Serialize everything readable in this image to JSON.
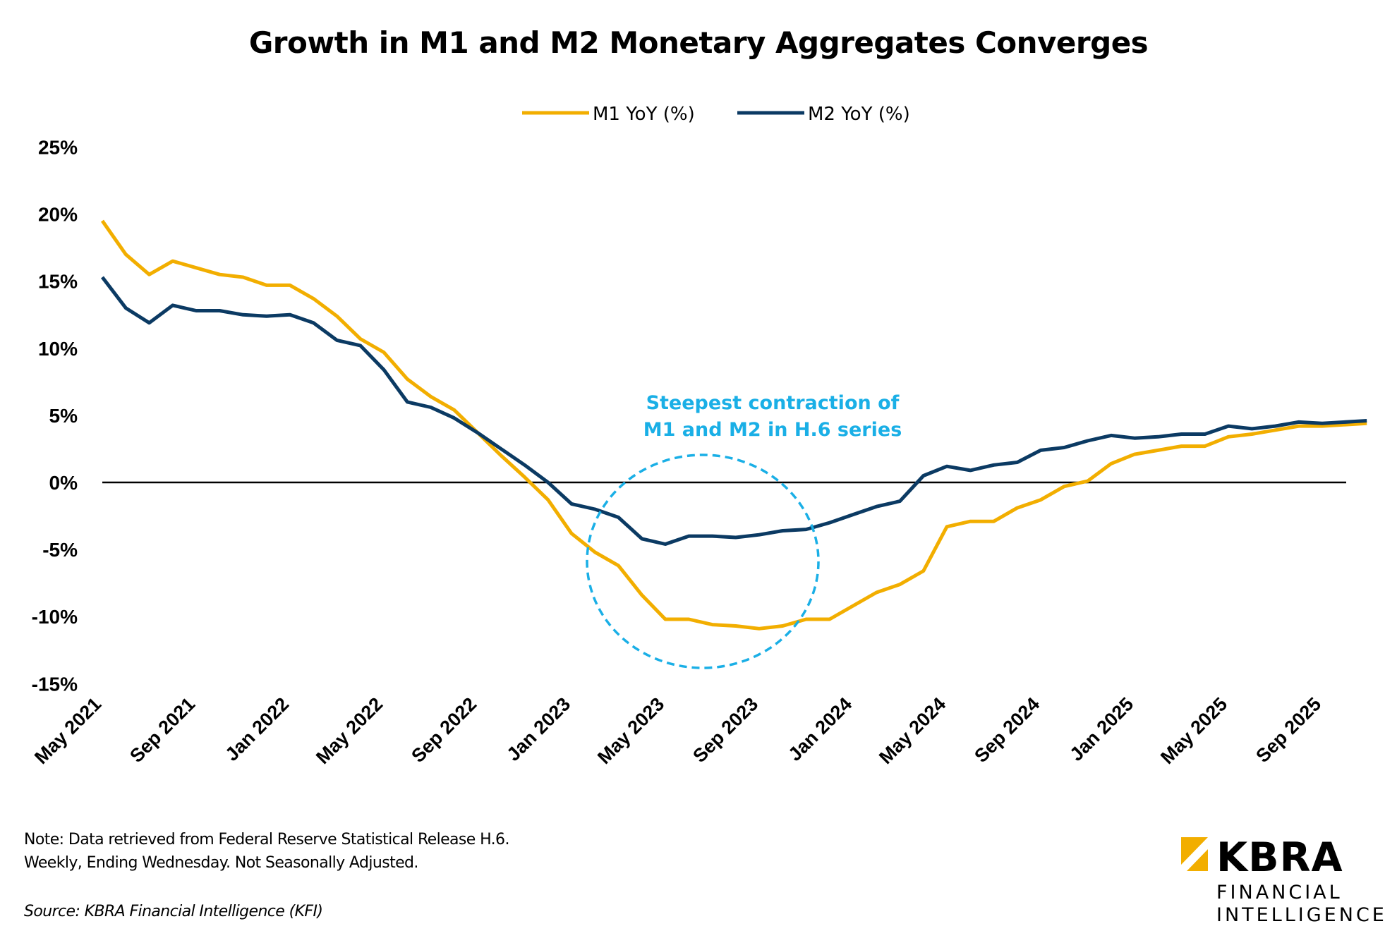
{
  "chart_data": {
    "type": "line",
    "title": "Growth in M1 and M2 Monetary Aggregates Converges",
    "legend_placement": "top",
    "y_ticks": [
      "25%",
      "20%",
      "15%",
      "10%",
      "5%",
      "0%",
      "-5%",
      "-10%",
      "-15%"
    ],
    "ylim": [
      -15,
      25
    ],
    "x_ticks": [
      "May 2021",
      "Sep 2021",
      "Jan 2022",
      "May 2022",
      "Sep 2022",
      "Jan 2023",
      "May 2023",
      "Sep 2023",
      "Jan 2024",
      "May 2024",
      "Sep 2024",
      "Jan 2025",
      "May 2025",
      "Sep 2025"
    ],
    "x": [
      "2021-05",
      "2021-06",
      "2021-07",
      "2021-08",
      "2021-09",
      "2021-10",
      "2021-11",
      "2021-12",
      "2022-01",
      "2022-02",
      "2022-03",
      "2022-04",
      "2022-05",
      "2022-06",
      "2022-07",
      "2022-08",
      "2022-09",
      "2022-10",
      "2022-11",
      "2022-12",
      "2023-01",
      "2023-02",
      "2023-03",
      "2023-04",
      "2023-05",
      "2023-06",
      "2023-07",
      "2023-08",
      "2023-09",
      "2023-10",
      "2023-11",
      "2023-12",
      "2024-01",
      "2024-02",
      "2024-03",
      "2024-04",
      "2024-05",
      "2024-06",
      "2024-07",
      "2024-08",
      "2024-09",
      "2024-10",
      "2024-11",
      "2024-12",
      "2025-01",
      "2025-02",
      "2025-03",
      "2025-04",
      "2025-05",
      "2025-06",
      "2025-07",
      "2025-08",
      "2025-09",
      "2025-10"
    ],
    "series": [
      {
        "name": "M1 YoY (%)",
        "color": "#F2AE00",
        "values": [
          19.5,
          17.0,
          15.5,
          16.5,
          16.0,
          15.5,
          15.3,
          14.7,
          14.7,
          13.7,
          12.4,
          10.7,
          9.7,
          7.7,
          6.4,
          5.4,
          3.7,
          2.0,
          0.4,
          -1.3,
          -3.8,
          -5.2,
          -6.2,
          -8.4,
          -10.2,
          -10.2,
          -10.6,
          -10.7,
          -10.9,
          -10.7,
          -10.2,
          -10.2,
          -9.2,
          -8.2,
          -7.6,
          -6.6,
          -3.3,
          -2.9,
          -2.9,
          -1.9,
          -1.3,
          -0.3,
          0.1,
          1.4,
          2.1,
          2.4,
          2.7,
          2.7,
          3.4,
          3.6,
          3.9,
          4.2,
          4.2,
          4.4
        ]
      },
      {
        "name": "M2 YoY (%)",
        "color": "#0B3A63",
        "values": [
          15.3,
          13.0,
          11.9,
          13.2,
          12.8,
          12.8,
          12.5,
          12.4,
          12.5,
          11.9,
          10.6,
          10.2,
          8.4,
          6.0,
          5.6,
          4.8,
          3.7,
          2.5,
          1.3,
          0.0,
          -1.6,
          -2.0,
          -2.6,
          -4.2,
          -4.6,
          -4.0,
          -4.0,
          -4.1,
          -3.9,
          -3.6,
          -3.5,
          -3.0,
          -2.4,
          -1.8,
          -1.4,
          0.5,
          1.2,
          0.9,
          1.3,
          1.5,
          2.4,
          2.6,
          3.1,
          3.5,
          3.3,
          3.4,
          3.6,
          3.6,
          4.2,
          4.0,
          4.2,
          4.5,
          4.4,
          4.6
        ]
      }
    ],
    "annotation": {
      "lines": [
        "Steepest contraction of",
        "M1 and M2 in H.6 series"
      ],
      "color": "#1AAFE6"
    }
  },
  "footer": {
    "note_line1": "Note: Data retrieved from Federal Reserve Statistical Release H.6.",
    "note_line2": "Weekly, Ending Wednesday. Not Seasonally Adjusted.",
    "source": "Source: KBRA Financial Intelligence (KFI)"
  },
  "logo": {
    "text1": "KBRA",
    "text2": "FINANCIAL",
    "text3": "INTELLIGENCE",
    "color": "#F2AE00"
  }
}
